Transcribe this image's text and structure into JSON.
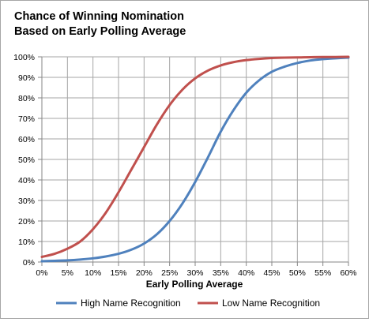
{
  "chart_data": {
    "type": "line",
    "title": [
      "Chance of Winning Nomination",
      "Based on Early Polling Average"
    ],
    "xlabel": "Early Polling Average",
    "ylabel": "",
    "x": [
      0,
      5,
      10,
      15,
      20,
      25,
      30,
      35,
      40,
      45,
      50,
      55,
      60
    ],
    "x_tick_labels": [
      "0%",
      "5%",
      "10%",
      "15%",
      "20%",
      "25%",
      "30%",
      "35%",
      "40%",
      "45%",
      "50%",
      "55%",
      "60%"
    ],
    "xlim": [
      0,
      60
    ],
    "y_ticks": [
      0,
      10,
      20,
      30,
      40,
      50,
      60,
      70,
      80,
      90,
      100
    ],
    "y_tick_labels": [
      "0%",
      "10%",
      "20%",
      "30%",
      "40%",
      "50%",
      "60%",
      "70%",
      "80%",
      "90%",
      "100%"
    ],
    "ylim": [
      0,
      100
    ],
    "grid": true,
    "legend": "bottom",
    "series": [
      {
        "name": "High Name Recognition",
        "color": "#4f81bd",
        "x": [
          0,
          2.5,
          5,
          7.5,
          10,
          12.5,
          15,
          17.5,
          20,
          22.5,
          25,
          27.5,
          30,
          32.5,
          35,
          37.5,
          40,
          42.5,
          45,
          47.5,
          50,
          52.5,
          55,
          57.5,
          60
        ],
        "values": [
          0.4,
          0.6,
          0.8,
          1.2,
          1.8,
          2.7,
          4.0,
          6.0,
          9.0,
          13.5,
          20.0,
          28.5,
          39.0,
          51.0,
          63.5,
          74.0,
          82.5,
          88.5,
          92.7,
          95.2,
          97.0,
          98.2,
          98.9,
          99.3,
          99.6
        ]
      },
      {
        "name": "Low Name Recognition",
        "color": "#c0504d",
        "x": [
          0,
          2.5,
          5,
          7.5,
          10,
          12.5,
          15,
          17.5,
          20,
          22.5,
          25,
          27.5,
          30,
          32.5,
          35,
          37.5,
          40,
          42.5,
          45,
          47.5,
          50,
          52.5,
          55,
          57.5,
          60
        ],
        "values": [
          2.5,
          4.0,
          6.5,
          10.0,
          16.0,
          24.0,
          34.0,
          45.0,
          56.0,
          67.0,
          76.5,
          84.0,
          89.5,
          93.3,
          95.8,
          97.4,
          98.4,
          99.0,
          99.4,
          99.6,
          99.7,
          99.8,
          99.9,
          99.9,
          100.0
        ]
      }
    ]
  }
}
